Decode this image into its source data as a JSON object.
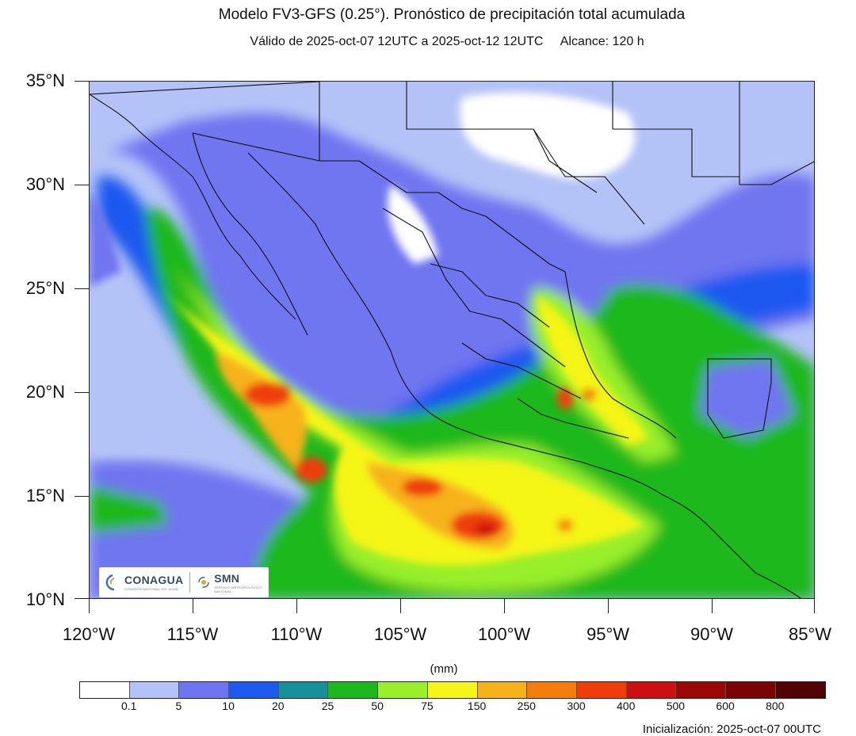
{
  "header": {
    "title": "Modelo FV3-GFS (0.25°). Pronóstico de precipitación total acumulada",
    "subtitle": "Válido de 2025-oct-07 12UTC a 2025-oct-12 12UTC     Alcance: 120 h"
  },
  "axes": {
    "lat_labels": [
      "35°N",
      "30°N",
      "25°N",
      "20°N",
      "15°N",
      "10°N"
    ],
    "lon_labels": [
      "120°W",
      "115°W",
      "110°W",
      "105°W",
      "100°W",
      "95°W",
      "90°W",
      "85°W"
    ]
  },
  "legend": {
    "units": "(mm)",
    "colors": [
      "#ffffff",
      "#b4c3f7",
      "#6f75f0",
      "#1e59f0",
      "#16909a",
      "#1cb81e",
      "#99ef2a",
      "#f5f519",
      "#f7b21a",
      "#f57d0c",
      "#ef3c0a",
      "#cd0f0f",
      "#9c0606",
      "#7a0404",
      "#520202"
    ],
    "tick_labels": [
      "0.1",
      "5",
      "10",
      "20",
      "25",
      "50",
      "75",
      "150",
      "250",
      "300",
      "400",
      "500",
      "600",
      "800"
    ]
  },
  "footer": {
    "init": "Inicialización: 2025-oct-07 00UTC"
  },
  "logos": {
    "conagua": "CONAGUA",
    "conagua_sub": "COMISIÓN NACIONAL DEL AGUA",
    "smn": "SMN",
    "smn_sub": "SERVICIO METEOROLÓGICO NACIONAL"
  }
}
